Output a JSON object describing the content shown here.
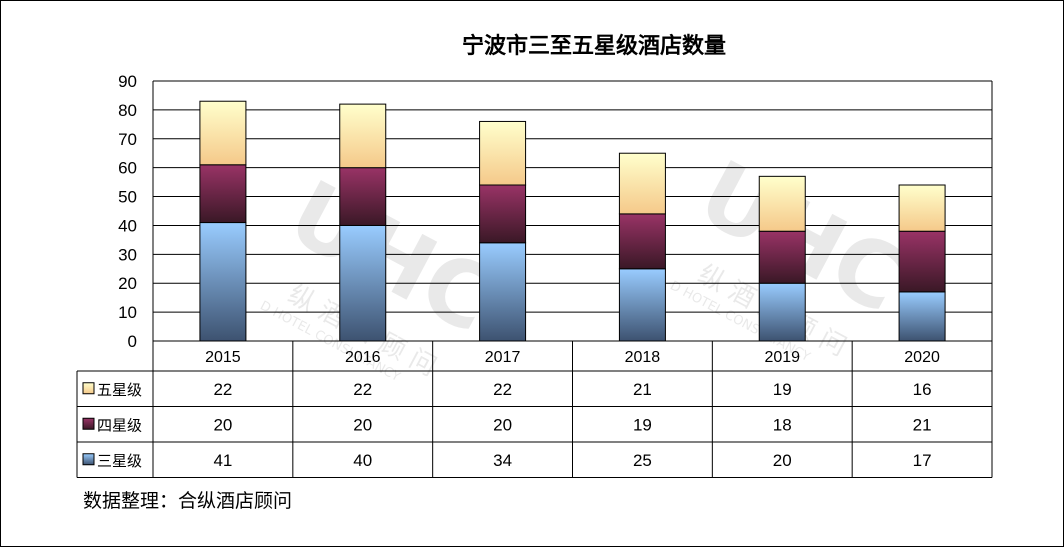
{
  "chart_data": {
    "type": "bar",
    "stacked": true,
    "title": "宁波市三至五星级酒店数量",
    "categories": [
      "2015",
      "2016",
      "2017",
      "2018",
      "2019",
      "2020"
    ],
    "series": [
      {
        "name": "三星级",
        "values": [
          41,
          40,
          34,
          25,
          20,
          17
        ],
        "color_top": "#99ccff",
        "color_bottom": "#3d5270"
      },
      {
        "name": "四星级",
        "values": [
          20,
          20,
          20,
          19,
          18,
          21
        ],
        "color_top": "#993366",
        "color_bottom": "#3a1826"
      },
      {
        "name": "五星级",
        "values": [
          22,
          22,
          22,
          21,
          19,
          16
        ],
        "color_top": "#ffffcc",
        "color_bottom": "#f5c98a"
      }
    ],
    "ylim": [
      0,
      90
    ],
    "yticks": [
      "0",
      "10",
      "20",
      "30",
      "40",
      "50",
      "60",
      "70",
      "80",
      "90"
    ],
    "grid": true,
    "data_table": true,
    "legend": "in-table-left"
  },
  "source_note": "数据整理：合纵酒店顾问",
  "watermark": {
    "text_cn": "纵 酒 店 顾 问",
    "text_en": "D HOTEL CONSULTANCY"
  }
}
